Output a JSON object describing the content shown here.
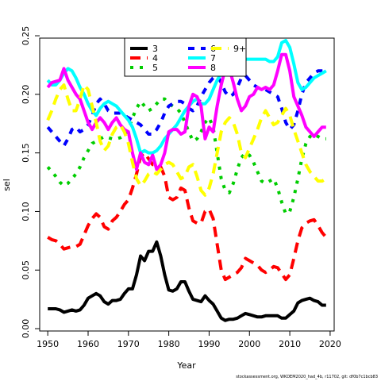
{
  "chart_data": {
    "type": "line",
    "xlabel": "Year",
    "ylabel": "sel",
    "xlim": [
      1948,
      2021
    ],
    "ylim": [
      -0.002,
      0.248
    ],
    "xticks": [
      1950,
      1960,
      1970,
      1980,
      1990,
      2000,
      2010,
      2020
    ],
    "yticks": [
      0.0,
      0.05,
      0.1,
      0.15,
      0.2,
      0.25
    ],
    "ytick_labels": [
      "0.00",
      "0.05",
      "0.10",
      "0.15",
      "0.20",
      "0.25"
    ],
    "legend_position": "top-center",
    "footer": "stockassessment.org, WKDEM2020_had_4b, r11702, git: df0b7c1bcb83",
    "series": [
      {
        "name": "3",
        "color": "#000000",
        "dash": "solid",
        "x": [
          1950,
          1951,
          1952,
          1953,
          1954,
          1955,
          1956,
          1957,
          1958,
          1959,
          1960,
          1961,
          1962,
          1963,
          1964,
          1965,
          1966,
          1967,
          1968,
          1969,
          1970,
          1971,
          1972,
          1973,
          1974,
          1975,
          1976,
          1977,
          1978,
          1979,
          1980,
          1981,
          1982,
          1983,
          1984,
          1985,
          1986,
          1987,
          1988,
          1989,
          1990,
          1991,
          1992,
          1993,
          1994,
          1995,
          1996,
          1997,
          1998,
          1999,
          2000,
          2001,
          2002,
          2003,
          2004,
          2005,
          2006,
          2007,
          2008,
          2009,
          2010,
          2011,
          2012,
          2013,
          2014,
          2015,
          2016,
          2017,
          2018,
          2019
        ],
        "y": [
          0.017,
          0.017,
          0.017,
          0.016,
          0.014,
          0.015,
          0.016,
          0.015,
          0.016,
          0.02,
          0.026,
          0.028,
          0.03,
          0.028,
          0.023,
          0.021,
          0.024,
          0.024,
          0.025,
          0.03,
          0.034,
          0.034,
          0.046,
          0.062,
          0.058,
          0.066,
          0.066,
          0.074,
          0.062,
          0.046,
          0.033,
          0.032,
          0.034,
          0.04,
          0.04,
          0.032,
          0.025,
          0.024,
          0.023,
          0.028,
          0.024,
          0.021,
          0.015,
          0.009,
          0.007,
          0.008,
          0.008,
          0.009,
          0.011,
          0.013,
          0.012,
          0.011,
          0.01,
          0.01,
          0.011,
          0.011,
          0.011,
          0.011,
          0.009,
          0.009,
          0.012,
          0.015,
          0.022,
          0.024,
          0.025,
          0.026,
          0.024,
          0.023,
          0.02,
          0.02
        ]
      },
      {
        "name": "4",
        "color": "#ff0000",
        "dash": "long",
        "x": [
          1950,
          1951,
          1952,
          1953,
          1954,
          1955,
          1956,
          1957,
          1958,
          1959,
          1960,
          1961,
          1962,
          1963,
          1964,
          1965,
          1966,
          1967,
          1968,
          1969,
          1970,
          1971,
          1972,
          1973,
          1974,
          1975,
          1976,
          1977,
          1978,
          1979,
          1980,
          1981,
          1982,
          1983,
          1984,
          1985,
          1986,
          1987,
          1988,
          1989,
          1990,
          1991,
          1992,
          1993,
          1994,
          1995,
          1996,
          1997,
          1998,
          1999,
          2000,
          2001,
          2002,
          2003,
          2004,
          2005,
          2006,
          2007,
          2008,
          2009,
          2010,
          2011,
          2012,
          2013,
          2014,
          2015,
          2016,
          2017,
          2018,
          2019
        ],
        "y": [
          0.078,
          0.076,
          0.075,
          0.072,
          0.068,
          0.069,
          0.07,
          0.07,
          0.072,
          0.08,
          0.088,
          0.094,
          0.098,
          0.095,
          0.087,
          0.085,
          0.092,
          0.095,
          0.1,
          0.106,
          0.11,
          0.12,
          0.132,
          0.147,
          0.15,
          0.145,
          0.14,
          0.14,
          0.138,
          0.13,
          0.112,
          0.11,
          0.112,
          0.12,
          0.118,
          0.103,
          0.092,
          0.09,
          0.09,
          0.1,
          0.102,
          0.094,
          0.072,
          0.05,
          0.042,
          0.044,
          0.046,
          0.048,
          0.052,
          0.06,
          0.058,
          0.056,
          0.054,
          0.05,
          0.048,
          0.05,
          0.053,
          0.052,
          0.047,
          0.042,
          0.046,
          0.06,
          0.075,
          0.086,
          0.09,
          0.092,
          0.093,
          0.088,
          0.082,
          0.078
        ]
      },
      {
        "name": "5",
        "color": "#00cd00",
        "dash": "dots",
        "x": [
          1950,
          1951,
          1952,
          1953,
          1954,
          1955,
          1956,
          1957,
          1958,
          1959,
          1960,
          1961,
          1962,
          1963,
          1964,
          1965,
          1966,
          1967,
          1968,
          1969,
          1970,
          1971,
          1972,
          1973,
          1974,
          1975,
          1976,
          1977,
          1978,
          1979,
          1980,
          1981,
          1982,
          1983,
          1984,
          1985,
          1986,
          1987,
          1988,
          1989,
          1990,
          1991,
          1992,
          1993,
          1994,
          1995,
          1996,
          1997,
          1998,
          1999,
          2000,
          2001,
          2002,
          2003,
          2004,
          2005,
          2006,
          2007,
          2008,
          2009,
          2010,
          2011,
          2012,
          2013,
          2014,
          2015,
          2016,
          2017,
          2018,
          2019
        ],
        "y": [
          0.138,
          0.134,
          0.13,
          0.125,
          0.122,
          0.124,
          0.128,
          0.132,
          0.138,
          0.146,
          0.152,
          0.158,
          0.16,
          0.162,
          0.164,
          0.163,
          0.162,
          0.162,
          0.163,
          0.165,
          0.17,
          0.18,
          0.188,
          0.194,
          0.19,
          0.186,
          0.188,
          0.192,
          0.196,
          0.196,
          0.192,
          0.19,
          0.188,
          0.184,
          0.176,
          0.168,
          0.16,
          0.162,
          0.168,
          0.176,
          0.18,
          0.172,
          0.15,
          0.128,
          0.118,
          0.116,
          0.124,
          0.136,
          0.146,
          0.15,
          0.148,
          0.142,
          0.134,
          0.126,
          0.124,
          0.126,
          0.128,
          0.12,
          0.108,
          0.098,
          0.1,
          0.112,
          0.128,
          0.145,
          0.158,
          0.164,
          0.166,
          0.164,
          0.162,
          0.162
        ]
      },
      {
        "name": "6",
        "color": "#0000ff",
        "dash": "short",
        "x": [
          1950,
          1951,
          1952,
          1953,
          1954,
          1955,
          1956,
          1957,
          1958,
          1959,
          1960,
          1961,
          1962,
          1963,
          1964,
          1965,
          1966,
          1967,
          1968,
          1969,
          1970,
          1971,
          1972,
          1973,
          1974,
          1975,
          1976,
          1977,
          1978,
          1979,
          1980,
          1981,
          1982,
          1983,
          1984,
          1985,
          1986,
          1987,
          1988,
          1989,
          1990,
          1991,
          1992,
          1993,
          1994,
          1995,
          1996,
          1997,
          1998,
          1999,
          2000,
          2001,
          2002,
          2003,
          2004,
          2005,
          2006,
          2007,
          2008,
          2009,
          2010,
          2011,
          2012,
          2013,
          2014,
          2015,
          2016,
          2017,
          2018,
          2019
        ],
        "y": [
          0.172,
          0.168,
          0.164,
          0.16,
          0.156,
          0.162,
          0.17,
          0.172,
          0.168,
          0.17,
          0.174,
          0.182,
          0.192,
          0.196,
          0.192,
          0.186,
          0.184,
          0.184,
          0.184,
          0.182,
          0.18,
          0.178,
          0.176,
          0.174,
          0.17,
          0.166,
          0.166,
          0.17,
          0.176,
          0.184,
          0.19,
          0.192,
          0.194,
          0.194,
          0.192,
          0.188,
          0.186,
          0.19,
          0.198,
          0.204,
          0.21,
          0.214,
          0.216,
          0.21,
          0.202,
          0.198,
          0.2,
          0.206,
          0.214,
          0.216,
          0.212,
          0.208,
          0.206,
          0.204,
          0.204,
          0.202,
          0.2,
          0.198,
          0.188,
          0.176,
          0.17,
          0.174,
          0.186,
          0.2,
          0.21,
          0.214,
          0.218,
          0.22,
          0.22,
          0.22
        ]
      },
      {
        "name": "7",
        "color": "#00ffff",
        "dash": "solid",
        "x": [
          1950,
          1951,
          1952,
          1953,
          1954,
          1955,
          1956,
          1957,
          1958,
          1959,
          1960,
          1961,
          1962,
          1963,
          1964,
          1965,
          1966,
          1967,
          1968,
          1969,
          1970,
          1971,
          1972,
          1973,
          1974,
          1975,
          1976,
          1977,
          1978,
          1979,
          1980,
          1981,
          1982,
          1983,
          1984,
          1985,
          1986,
          1987,
          1988,
          1989,
          1990,
          1991,
          1992,
          1993,
          1994,
          1995,
          1996,
          1997,
          1998,
          1999,
          2000,
          2001,
          2002,
          2003,
          2004,
          2005,
          2006,
          2007,
          2008,
          2009,
          2010,
          2011,
          2012,
          2013,
          2014,
          2015,
          2016,
          2017,
          2018,
          2019
        ],
        "y": [
          0.212,
          0.208,
          0.208,
          0.212,
          0.218,
          0.222,
          0.22,
          0.214,
          0.206,
          0.2,
          0.192,
          0.186,
          0.182,
          0.188,
          0.192,
          0.194,
          0.192,
          0.19,
          0.186,
          0.182,
          0.178,
          0.172,
          0.162,
          0.15,
          0.152,
          0.15,
          0.15,
          0.152,
          0.156,
          0.162,
          0.166,
          0.17,
          0.174,
          0.18,
          0.186,
          0.19,
          0.194,
          0.196,
          0.192,
          0.192,
          0.196,
          0.204,
          0.212,
          0.218,
          0.222,
          0.224,
          0.226,
          0.228,
          0.228,
          0.23,
          0.23,
          0.23,
          0.23,
          0.23,
          0.23,
          0.228,
          0.228,
          0.232,
          0.244,
          0.246,
          0.24,
          0.226,
          0.21,
          0.204,
          0.206,
          0.21,
          0.214,
          0.216,
          0.218,
          0.22
        ]
      },
      {
        "name": "8",
        "color": "#ff00ff",
        "dash": "solid",
        "x": [
          1950,
          1951,
          1952,
          1953,
          1954,
          1955,
          1956,
          1957,
          1958,
          1959,
          1960,
          1961,
          1962,
          1963,
          1964,
          1965,
          1966,
          1967,
          1968,
          1969,
          1970,
          1971,
          1972,
          1973,
          1974,
          1975,
          1976,
          1977,
          1978,
          1979,
          1980,
          1981,
          1982,
          1983,
          1984,
          1985,
          1986,
          1987,
          1988,
          1989,
          1990,
          1991,
          1992,
          1993,
          1994,
          1995,
          1996,
          1997,
          1998,
          1999,
          2000,
          2001,
          2002,
          2003,
          2004,
          2005,
          2006,
          2007,
          2008,
          2009,
          2010,
          2011,
          2012,
          2013,
          2014,
          2015,
          2016,
          2017,
          2018,
          2019
        ],
        "y": [
          0.206,
          0.21,
          0.211,
          0.212,
          0.222,
          0.212,
          0.206,
          0.2,
          0.196,
          0.186,
          0.176,
          0.17,
          0.176,
          0.18,
          0.176,
          0.17,
          0.176,
          0.18,
          0.174,
          0.17,
          0.168,
          0.15,
          0.136,
          0.15,
          0.142,
          0.14,
          0.148,
          0.136,
          0.14,
          0.15,
          0.168,
          0.17,
          0.17,
          0.166,
          0.168,
          0.19,
          0.2,
          0.198,
          0.19,
          0.162,
          0.172,
          0.168,
          0.19,
          0.208,
          0.222,
          0.222,
          0.21,
          0.196,
          0.186,
          0.19,
          0.198,
          0.2,
          0.206,
          0.204,
          0.206,
          0.204,
          0.208,
          0.22,
          0.234,
          0.234,
          0.22,
          0.198,
          0.19,
          0.182,
          0.172,
          0.168,
          0.164,
          0.168,
          0.172,
          0.172
        ]
      },
      {
        "name": "9+",
        "color": "#ffff00",
        "dash": "long",
        "x": [
          1950,
          1951,
          1952,
          1953,
          1954,
          1955,
          1956,
          1957,
          1958,
          1959,
          1960,
          1961,
          1962,
          1963,
          1964,
          1965,
          1966,
          1967,
          1968,
          1969,
          1970,
          1971,
          1972,
          1973,
          1974,
          1975,
          1976,
          1977,
          1978,
          1979,
          1980,
          1981,
          1982,
          1983,
          1984,
          1985,
          1986,
          1987,
          1988,
          1989,
          1990,
          1991,
          1992,
          1993,
          1994,
          1995,
          1996,
          1997,
          1998,
          1999,
          2000,
          2001,
          2002,
          2003,
          2004,
          2005,
          2006,
          2007,
          2008,
          2009,
          2010,
          2011,
          2012,
          2013,
          2014,
          2015,
          2016,
          2017,
          2018,
          2019
        ],
        "y": [
          0.178,
          0.186,
          0.196,
          0.204,
          0.208,
          0.196,
          0.186,
          0.186,
          0.196,
          0.208,
          0.204,
          0.19,
          0.176,
          0.16,
          0.152,
          0.156,
          0.166,
          0.172,
          0.174,
          0.168,
          0.158,
          0.142,
          0.128,
          0.122,
          0.126,
          0.132,
          0.134,
          0.132,
          0.136,
          0.14,
          0.142,
          0.14,
          0.134,
          0.128,
          0.13,
          0.138,
          0.14,
          0.13,
          0.118,
          0.114,
          0.12,
          0.132,
          0.15,
          0.168,
          0.176,
          0.18,
          0.176,
          0.166,
          0.15,
          0.146,
          0.154,
          0.162,
          0.17,
          0.18,
          0.186,
          0.18,
          0.174,
          0.176,
          0.182,
          0.188,
          0.182,
          0.17,
          0.16,
          0.15,
          0.14,
          0.134,
          0.13,
          0.126,
          0.126,
          0.128
        ]
      }
    ]
  }
}
